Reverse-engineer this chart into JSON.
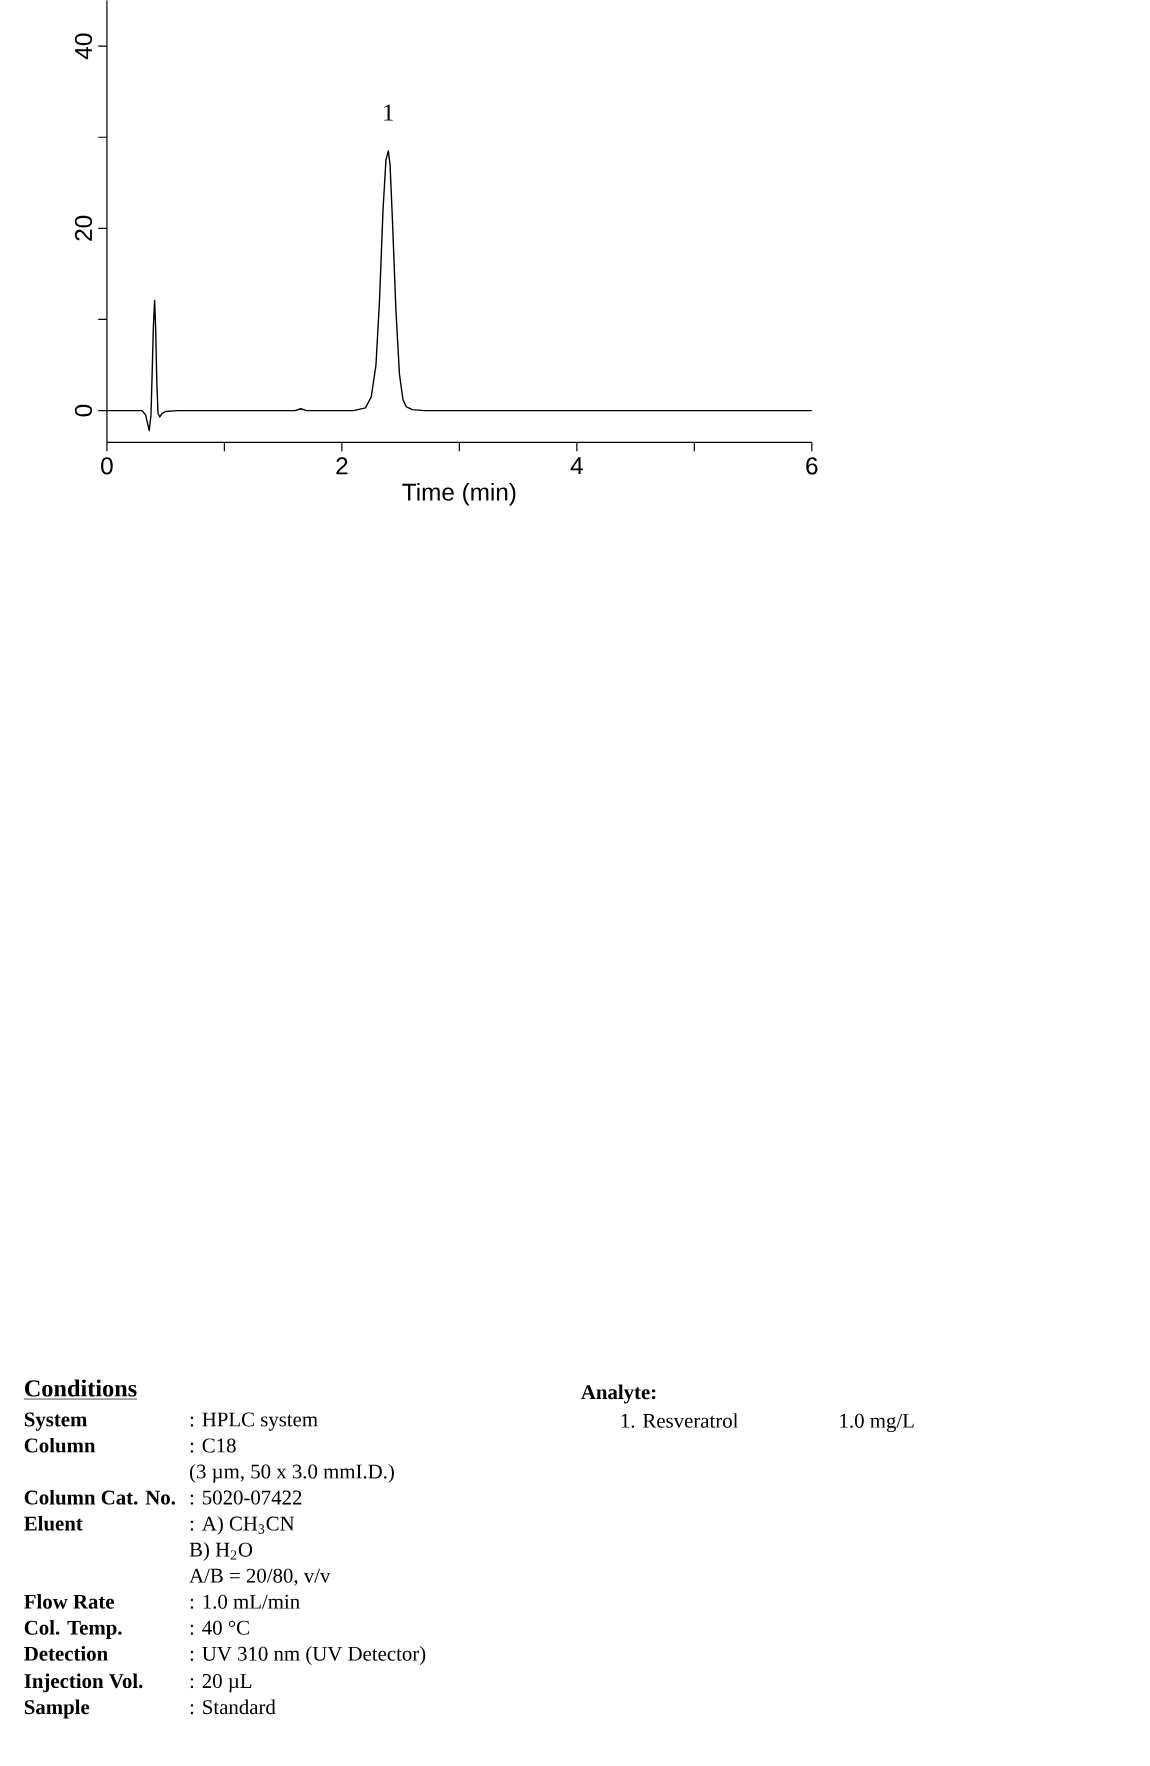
{
  "chart_data": {
    "type": "line",
    "xlabel": "Time (min)",
    "x": [
      0,
      0.2,
      0.3,
      0.33,
      0.36,
      0.375,
      0.385,
      0.395,
      0.406,
      0.415,
      0.425,
      0.435,
      0.45,
      0.47,
      0.5,
      0.6,
      1.0,
      1.6,
      1.65,
      1.7,
      2.1,
      2.2,
      2.25,
      2.29,
      2.32,
      2.35,
      2.375,
      2.395,
      2.41,
      2.43,
      2.46,
      2.49,
      2.52,
      2.55,
      2.6,
      2.7,
      3,
      4,
      5,
      6
    ],
    "values": [
      0,
      0,
      0,
      -0.5,
      -2.2,
      -0.5,
      4,
      9,
      12.1,
      9,
      3,
      -0.3,
      -0.7,
      -0.3,
      -0.1,
      0,
      0,
      0,
      0.2,
      0,
      0,
      0.3,
      1.5,
      5,
      12,
      22,
      27.5,
      28.5,
      27,
      21,
      11,
      4,
      1.2,
      0.4,
      0.1,
      0,
      0,
      0,
      0,
      0
    ],
    "color": "#000000",
    "xlim": [
      0,
      6
    ],
    "ylim": [
      -3.5,
      45
    ],
    "xticks": [
      0,
      {
        "value": 1,
        "label": null
      },
      2,
      {
        "value": 3,
        "label": null
      },
      4,
      {
        "value": 5,
        "label": null
      },
      6
    ],
    "yticks": [
      0,
      {
        "value": 10,
        "label": null
      },
      20,
      {
        "value": 30,
        "label": null
      },
      40
    ],
    "annotations": [
      {
        "text": "1",
        "x": 2.395,
        "y": 28.5
      },
      "Conditions",
      "System",
      ": HPLC system",
      "Column",
      ": C18",
      "(3 µm, 50 x 3.0 mmI.D.)",
      "Column Cat. No.",
      ": 5020-07422",
      "Eluent",
      ": A) CH$_{3}$CN",
      "B) H$_{2}$O",
      "A/B = 20/80, v/v",
      "Flow Rate",
      ": 1.0 mL/min",
      "Col. Temp.",
      ": 40 °C",
      "Detection",
      ": UV 310 nm (UV Detector)",
      "Injection Vol.",
      ": 20 µL",
      "Sample",
      ": Standard",
      "Analyte:",
      "1. Resveratrol",
      "1.0 mg/L"
    ]
  }
}
